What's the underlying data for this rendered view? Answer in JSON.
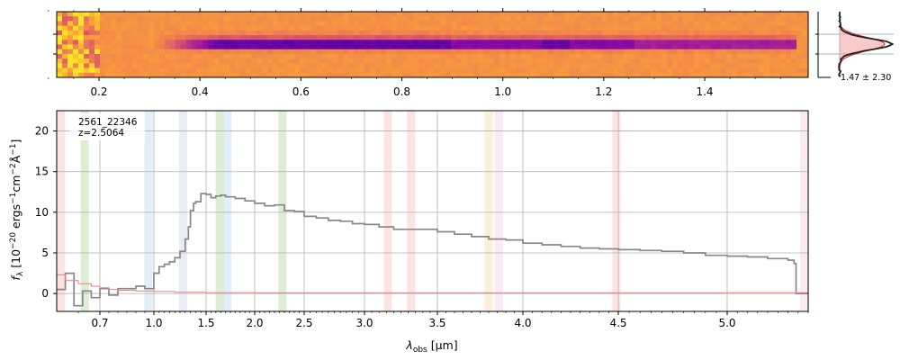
{
  "chart_data": [
    {
      "type": "heatmap",
      "panel": "2d-spectrum",
      "colormap": "plasma",
      "x_ticks": [
        {
          "value": 0.2,
          "label": "0.2"
        },
        {
          "value": 0.4,
          "label": "0.4"
        },
        {
          "value": 0.6,
          "label": "0.6"
        },
        {
          "value": 0.8,
          "label": "0.8"
        },
        {
          "value": 1.0,
          "label": "1.0"
        },
        {
          "value": 1.2,
          "label": "1.2"
        },
        {
          "value": 1.4,
          "label": "1.4"
        }
      ]
    },
    {
      "type": "line",
      "panel": "cross-dispersion-profile",
      "annotation": "1.47 ± 2.30",
      "colors": {
        "fill": "#f4a6a6",
        "profile": "#d62728",
        "data": "#222222",
        "ref": "#999999"
      }
    },
    {
      "type": "line",
      "panel": "1d-spectrum",
      "object_id": "2561_22346",
      "redshift_label": "z=2.5064",
      "xlabel_main": "λ",
      "xlabel_sub": "obs",
      "xlabel_unit": " [μm]",
      "ylabel": "f_λ [10^−20 ergs^−1cm^−2Å^−1]",
      "ylabel_parts": {
        "sym": "f",
        "sub": "λ",
        "a": " [10",
        "e1": "−20",
        "b": " ergs",
        "e2": "−1",
        "c": "cm",
        "e3": "−2",
        "d": "Å",
        "e4": "−1",
        "e": "]"
      },
      "xscale": "nonlinear (spectral pixel)",
      "xlim": [
        0.6,
        5.4
      ],
      "ylim": [
        -2.2,
        22.5
      ],
      "grid": true,
      "x_ticks": [
        {
          "value": 0.7,
          "label": "0.7"
        },
        {
          "value": 1.0,
          "label": "1.0"
        },
        {
          "value": 1.5,
          "label": "1.5"
        },
        {
          "value": 2.0,
          "label": "2.0"
        },
        {
          "value": 2.5,
          "label": "2.5"
        },
        {
          "value": 3.0,
          "label": "3.0"
        },
        {
          "value": 3.5,
          "label": "3.5"
        },
        {
          "value": 4.0,
          "label": "4.0"
        },
        {
          "value": 4.5,
          "label": "4.5"
        },
        {
          "value": 5.0,
          "label": "5.0"
        }
      ],
      "y_ticks": [
        {
          "value": 0,
          "label": "0"
        },
        {
          "value": 5,
          "label": "5"
        },
        {
          "value": 10,
          "label": "10"
        },
        {
          "value": 15,
          "label": "15"
        },
        {
          "value": 20,
          "label": "20"
        }
      ],
      "line_bands": [
        {
          "wave": 0.61,
          "color": "#f5b7b1"
        },
        {
          "wave": 0.665,
          "color": "#a9d18e"
        },
        {
          "wave": 0.97,
          "color": "#aed6f1"
        },
        {
          "wave": 1.28,
          "color": "#c5cae9"
        },
        {
          "wave": 1.64,
          "color": "#a9d18e"
        },
        {
          "wave": 1.72,
          "color": "#aed6f1"
        },
        {
          "wave": 2.28,
          "color": "#a9d18e"
        },
        {
          "wave": 3.16,
          "color": "#f5b7b1"
        },
        {
          "wave": 3.32,
          "color": "#f5b7b1"
        },
        {
          "wave": 3.8,
          "color": "#fad7a0"
        },
        {
          "wave": 3.86,
          "color": "#f8c8dc"
        },
        {
          "wave": 4.49,
          "color": "#f5b7b1"
        },
        {
          "wave": 5.38,
          "color": "#f8c8dc"
        }
      ],
      "series": [
        {
          "role": "flux",
          "color": "#888888",
          "x": [
            0.6,
            0.62,
            0.64,
            0.66,
            0.68,
            0.7,
            0.75,
            0.8,
            0.9,
            0.95,
            1.0,
            1.05,
            1.1,
            1.15,
            1.2,
            1.25,
            1.3,
            1.33,
            1.35,
            1.38,
            1.4,
            1.45,
            1.5,
            1.55,
            1.6,
            1.65,
            1.7,
            1.8,
            1.9,
            2.0,
            2.1,
            2.2,
            2.3,
            2.4,
            2.5,
            2.6,
            2.7,
            2.8,
            2.9,
            3.0,
            3.1,
            3.2,
            3.3,
            3.4,
            3.5,
            3.6,
            3.7,
            3.8,
            3.9,
            4.0,
            4.1,
            4.2,
            4.3,
            4.4,
            4.5,
            4.6,
            4.7,
            4.8,
            4.9,
            5.0,
            5.1,
            5.2,
            5.3,
            5.33,
            5.34,
            5.4
          ],
          "y": [
            0.5,
            2.5,
            -1.5,
            0.3,
            -0.5,
            0.6,
            -0.2,
            0.6,
            0.9,
            0.6,
            2.5,
            3.3,
            3.6,
            3.9,
            4.4,
            5.2,
            6.7,
            8.2,
            10.2,
            11.1,
            11.3,
            12.3,
            12.2,
            11.8,
            12.0,
            12.1,
            11.9,
            11.7,
            11.4,
            11.1,
            10.8,
            10.9,
            10.2,
            10.1,
            9.5,
            9.3,
            9.0,
            8.9,
            8.6,
            8.5,
            8.2,
            7.9,
            7.9,
            7.9,
            7.6,
            7.3,
            7.0,
            6.7,
            6.6,
            6.2,
            6.0,
            5.8,
            5.6,
            5.5,
            5.4,
            5.3,
            5.2,
            5.0,
            4.7,
            4.6,
            4.5,
            4.3,
            4.1,
            3.7,
            0.0,
            0.0
          ]
        },
        {
          "role": "uncertainty",
          "color": "#f08080",
          "x": [
            0.6,
            0.62,
            0.65,
            0.68,
            0.7,
            0.75,
            0.8,
            0.9,
            1.0,
            1.2,
            1.5,
            2.0,
            3.0,
            4.0,
            5.0,
            5.4
          ],
          "y": [
            2.3,
            1.6,
            1.2,
            0.9,
            0.7,
            0.5,
            0.4,
            0.3,
            0.25,
            0.15,
            0.1,
            0.08,
            0.08,
            0.08,
            0.1,
            0.12
          ]
        }
      ]
    }
  ]
}
